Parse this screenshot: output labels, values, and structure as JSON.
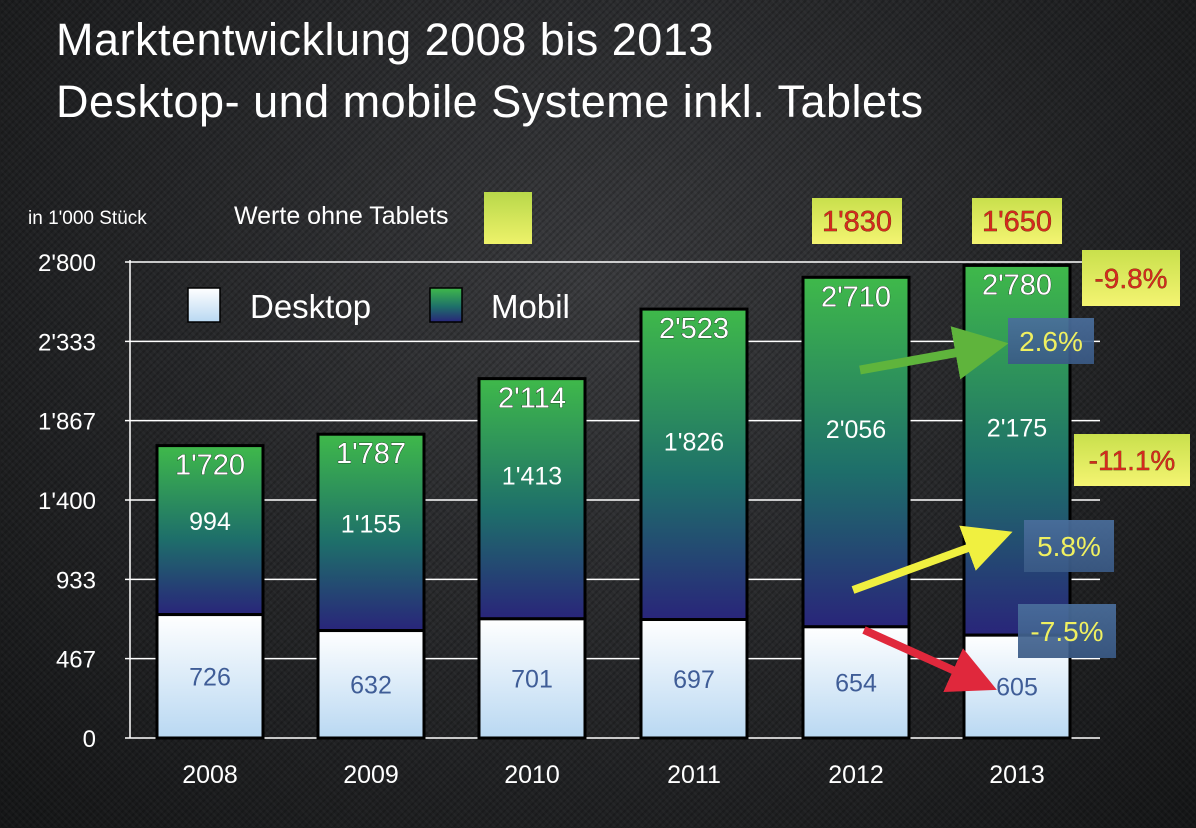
{
  "title": "Marktentwicklung 2008 bis 2013",
  "subtitle": "Desktop- und mobile Systeme inkl. Tablets",
  "unit_label": "in 1'000 Stück",
  "note_label": "Werte ohne Tablets",
  "colors": {
    "desktop_top": "#ffffff",
    "desktop_bottom": "#b9d8f2",
    "mobil_top": "#3fb94a",
    "mobil_bottom": "#29257a",
    "highlight_yellow": "#e6ef5a",
    "arrow_green": "#5fb43c",
    "arrow_yellow": "#f0f040",
    "arrow_red": "#e0283c"
  },
  "chart_data": {
    "type": "bar",
    "stacked": true,
    "categories": [
      "2008",
      "2009",
      "2010",
      "2011",
      "2012",
      "2013"
    ],
    "series": [
      {
        "name": "Desktop",
        "values": [
          726,
          632,
          701,
          697,
          654,
          605
        ],
        "labels": [
          "726",
          "632",
          "701",
          "697",
          "654",
          "605"
        ]
      },
      {
        "name": "Mobil",
        "values": [
          994,
          1155,
          1413,
          1826,
          2056,
          2175
        ],
        "labels": [
          "994",
          "1'155",
          "1'413",
          "1'826",
          "2'056",
          "2'175"
        ]
      }
    ],
    "totals": [
      1720,
      1787,
      2114,
      2523,
      2710,
      2780
    ],
    "total_labels": [
      "1'720",
      "1'787",
      "2'114",
      "2'523",
      "2'710",
      "2'780"
    ],
    "ylim": [
      0,
      2800
    ],
    "yticks": [
      0,
      467,
      933,
      1400,
      1867,
      2333,
      2800
    ],
    "ytick_labels": [
      "0",
      "467",
      "933",
      "1'400",
      "1'867",
      "2'333",
      "2'800"
    ],
    "grid": true,
    "legend_position": "top-left",
    "annotations": {
      "without_tablets": [
        {
          "category": "2012",
          "label": "1'830"
        },
        {
          "category": "2013",
          "label": "1'650"
        }
      ],
      "growth_badges": [
        {
          "label": "-9.8%",
          "style": "yellow"
        },
        {
          "label": "2.6%",
          "style": "blue"
        },
        {
          "label": "-11.1%",
          "style": "yellow"
        },
        {
          "label": "5.8%",
          "style": "blue"
        },
        {
          "label": "-7.5%",
          "style": "blue"
        }
      ],
      "arrows": [
        "green",
        "yellow",
        "red"
      ]
    }
  }
}
